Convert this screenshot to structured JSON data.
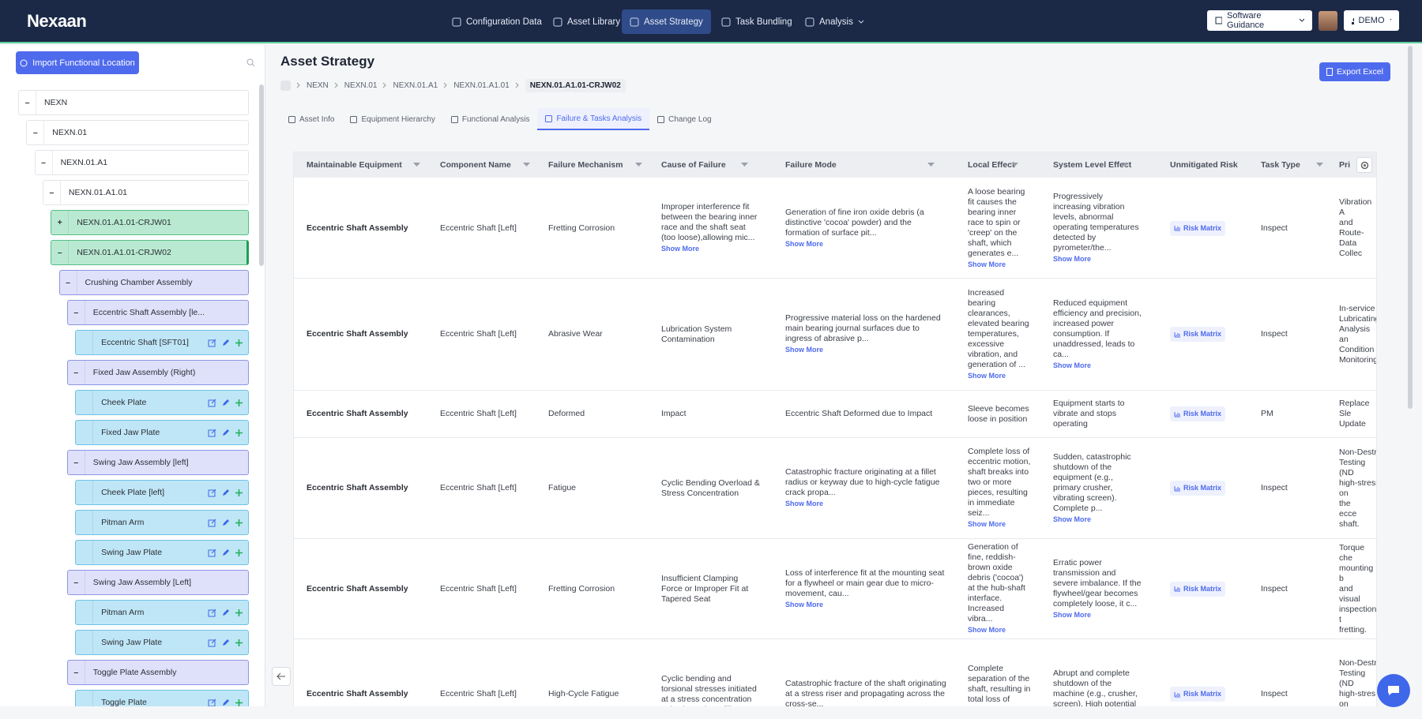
{
  "nav": {
    "brand": "Nexaan",
    "items": [
      "Configuration Data",
      "Asset Library",
      "Asset Strategy",
      "Task Bundling",
      "Analysis"
    ],
    "active": 2,
    "guidance": "Software Guidance",
    "user": "DEMO"
  },
  "sidebar": {
    "import_button": "Import Functional Location",
    "tree": [
      {
        "label": "NEXN",
        "toggle": "–",
        "level": 0,
        "kind": "plain"
      },
      {
        "label": "NEXN.01",
        "toggle": "–",
        "level": 1,
        "kind": "plain"
      },
      {
        "label": "NEXN.01.A1",
        "toggle": "–",
        "level": 2,
        "kind": "plain"
      },
      {
        "label": "NEXN.01.A1.01",
        "toggle": "–",
        "level": 3,
        "kind": "plain"
      },
      {
        "label": "NEXN.01.A1.01-CRJW01",
        "toggle": "+",
        "level": 4,
        "kind": "site"
      },
      {
        "label": "NEXN.01.A1.01-CRJW02",
        "toggle": "–",
        "level": 4,
        "kind": "site"
      },
      {
        "label": "Crushing Chamber Assembly",
        "toggle": "–",
        "level": 5,
        "kind": "assembly"
      },
      {
        "label": "Eccentric Shaft Assembly [le...",
        "toggle": "–",
        "level": 6,
        "kind": "assembly"
      },
      {
        "label": "Eccentric Shaft [SFT01]",
        "level": 7,
        "kind": "part"
      },
      {
        "label": "Fixed Jaw Assembly (Right)",
        "toggle": "–",
        "level": 6,
        "kind": "assembly"
      },
      {
        "label": "Cheek Plate",
        "level": 7,
        "kind": "part"
      },
      {
        "label": "Fixed Jaw Plate",
        "level": 7,
        "kind": "part"
      },
      {
        "label": "Swing Jaw Assembly [left]",
        "toggle": "–",
        "level": 6,
        "kind": "assembly"
      },
      {
        "label": "Cheek Plate [left]",
        "level": 7,
        "kind": "part"
      },
      {
        "label": "Pitman Arm",
        "level": 7,
        "kind": "part"
      },
      {
        "label": "Swing Jaw Plate",
        "level": 7,
        "kind": "part"
      },
      {
        "label": "Swing Jaw Assembly [Left]",
        "toggle": "–",
        "level": 6,
        "kind": "assembly"
      },
      {
        "label": "Pitman Arm",
        "level": 7,
        "kind": "part"
      },
      {
        "label": "Swing Jaw Plate",
        "level": 7,
        "kind": "part"
      },
      {
        "label": "Toggle Plate Assembly",
        "toggle": "–",
        "level": 6,
        "kind": "assembly"
      },
      {
        "label": "Toggle Plate",
        "level": 7,
        "kind": "part"
      }
    ]
  },
  "main": {
    "title": "Asset Strategy",
    "breadcrumb": [
      "NEXN",
      "NEXN.01",
      "NEXN.01.A1",
      "NEXN.01.A1.01",
      "NEXN.01.A1.01-CRJW02"
    ],
    "export_button": "Export Excel",
    "tabs": [
      "Asset Info",
      "Equipment Hierarchy",
      "Functional Analysis",
      "Failure & Tasks Analysis",
      "Change Log"
    ],
    "active_tab": 3,
    "show_more": "Show More",
    "table": {
      "columns": [
        "Maintainable Equipment",
        "Component Name",
        "Failure Mechanism",
        "Cause of Failure",
        "Failure Mode",
        "Local Effect",
        "System Level Effect",
        "Unmitigated Risk",
        "Task Type",
        "Pri"
      ],
      "rows": [
        {
          "equipment": "Eccentric Shaft Assembly",
          "component": "Eccentric Shaft [Left]",
          "mechanism": "Fretting Corrosion",
          "cause": {
            "text": "Improper interference fit between the bearing inner race and the shaft seat (too loose),allowing mic...",
            "more": true
          },
          "mode": {
            "text": "Generation of fine iron oxide debris (a distinctive 'cocoa' powder) and the formation of surface pit...",
            "more": true
          },
          "local": {
            "text": "A loose bearing fit causes the bearing inner race to spin or 'creep' on the shaft, which generates e...",
            "more": true
          },
          "system": {
            "text": "Progressively increasing vibration levels, abnormal operating temperatures detected by pyrometer/the...",
            "more": true
          },
          "risk": "Risk Matrix",
          "task": "Inspect",
          "primary": "Vibration A and Route- Data Collec"
        },
        {
          "equipment": "Eccentric Shaft Assembly",
          "component": "Eccentric Shaft [Left]",
          "mechanism": "Abrasive Wear",
          "cause": {
            "text": "Lubrication System Contamination",
            "more": false
          },
          "mode": {
            "text": "Progressive material loss on the hardened main bearing journal surfaces due to ingress of abrasive p...",
            "more": true
          },
          "local": {
            "text": "Increased bearing clearances, elevated bearing temperatures, excessive vibration, and generation of ...",
            "more": true
          },
          "system": {
            "text": "Reduced equipment efficiency and precision, increased power consumption. If unaddressed, leads to ca...",
            "more": true
          },
          "risk": "Risk Matrix",
          "task": "Inspect",
          "primary": "In-service Lubricating Analysis an Condition Monitoring."
        },
        {
          "equipment": "Eccentric Shaft Assembly",
          "component": "Eccentric Shaft [Left]",
          "mechanism": "Deformed",
          "cause": {
            "text": "Impact",
            "more": false
          },
          "mode": {
            "text": "Eccentric Shaft Deformed due to Impact",
            "more": false
          },
          "local": {
            "text": "Sleeve becomes loose in position",
            "more": false
          },
          "system": {
            "text": "Equipment starts to vibrate and stops operating",
            "more": false
          },
          "risk": "Risk Matrix",
          "task": "PM",
          "primary": "Replace Sle Update"
        },
        {
          "equipment": "Eccentric Shaft Assembly",
          "component": "Eccentric Shaft [Left]",
          "mechanism": "Fatigue",
          "cause": {
            "text": "Cyclic Bending Overload & Stress Concentration",
            "more": false
          },
          "mode": {
            "text": "Catastrophic fracture originating at a fillet radius or keyway due to high-cycle fatigue crack propa...",
            "more": true
          },
          "local": {
            "text": "Complete loss of eccentric motion, shaft breaks into two or more pieces, resulting in immediate seiz...",
            "more": true
          },
          "system": {
            "text": "Sudden, catastrophic shutdown of the equipment (e.g., primary crusher, vibrating screen). Complete p...",
            "more": true
          },
          "risk": "Risk Matrix",
          "task": "Inspect",
          "primary": "Non-Destru Testing (ND high-stress on the ecce shaft."
        },
        {
          "equipment": "Eccentric Shaft Assembly",
          "component": "Eccentric Shaft [Left]",
          "mechanism": "Fretting Corrosion",
          "cause": {
            "text": "Insufficient Clamping Force or Improper Fit at Tapered Seat",
            "more": false
          },
          "mode": {
            "text": "Loss of interference fit at the mounting seat for a flywheel or main gear due to micro-movement, cau...",
            "more": true
          },
          "local": {
            "text": "Generation of fine, reddish-brown oxide debris ('cocoa') at the hub-shaft interface. Increased vibra...",
            "more": true
          },
          "system": {
            "text": "Erratic power transmission and severe imbalance. If the flywheel/gear becomes completely loose, it c...",
            "more": true
          },
          "risk": "Risk Matrix",
          "task": "Inspect",
          "primary": "Torque che mounting b and visual inspection t fretting."
        },
        {
          "equipment": "Eccentric Shaft Assembly",
          "component": "Eccentric Shaft [Left]",
          "mechanism": "High-Cycle Fatigue",
          "cause": {
            "text": "Cyclic bending and torsional stresses initiated at a stress concentration point (e.g.,sharp fillet r...",
            "more": false
          },
          "mode": {
            "text": "Catastrophic fracture of the shaft originating at a stress riser and propagating across the cross-se...",
            "more": false
          },
          "local": {
            "text": "Complete separation of the shaft, resulting in total loss of power transmission",
            "more": false
          },
          "system": {
            "text": "Abrupt and complete shutdown of the machine (e.g., crusher, screen). High potential for",
            "more": false
          },
          "risk": "Risk Matrix",
          "task": "Inspect",
          "primary": "Non-Destru Testing (ND high-stres on the ecce"
        }
      ]
    }
  }
}
